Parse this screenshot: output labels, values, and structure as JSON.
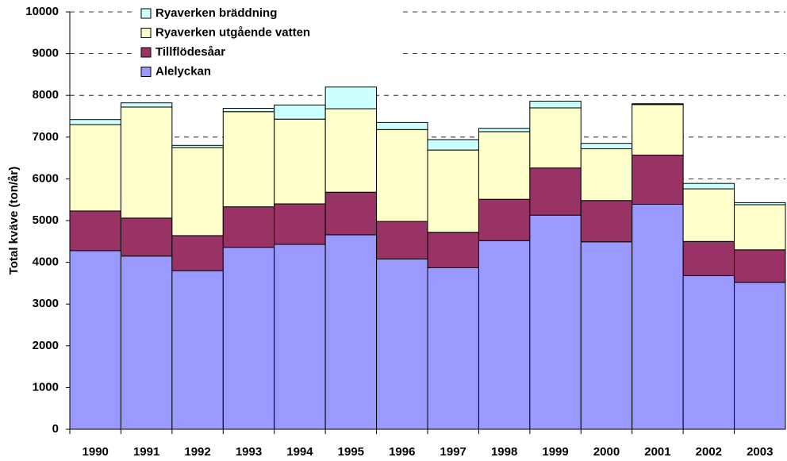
{
  "chart_data": {
    "type": "stacked_bar",
    "y_label": "Total kväve (ton/år)",
    "categories": [
      "1990",
      "1991",
      "1992",
      "1993",
      "1994",
      "1995",
      "1996",
      "1997",
      "1998",
      "1999",
      "2000",
      "2001",
      "2002",
      "2003"
    ],
    "series": [
      {
        "name": "Alelyckan",
        "color": "#9999ff",
        "values": [
          4280,
          4150,
          3800,
          4360,
          4430,
          4660,
          4080,
          3870,
          4520,
          5130,
          4490,
          5390,
          3680,
          3520
        ]
      },
      {
        "name": "Tillflödesåar",
        "color": "#993366",
        "values": [
          950,
          910,
          840,
          970,
          970,
          1020,
          900,
          850,
          990,
          1130,
          990,
          1180,
          820,
          780
        ]
      },
      {
        "name": "Ryaverken utgående vatten",
        "color": "#ffffcc",
        "values": [
          2070,
          2660,
          2110,
          2280,
          2030,
          2000,
          2200,
          1970,
          1620,
          1440,
          1240,
          1210,
          1260,
          1080
        ]
      },
      {
        "name": "Ryaverken bräddning",
        "color": "#ccffff",
        "values": [
          120,
          100,
          50,
          80,
          340,
          520,
          170,
          250,
          80,
          160,
          130,
          20,
          130,
          50
        ]
      }
    ],
    "ylim": [
      0,
      10000
    ],
    "yticks": [
      0,
      1000,
      2000,
      3000,
      4000,
      5000,
      6000,
      7000,
      8000,
      9000,
      10000
    ],
    "grid": true,
    "legend": "top-left"
  }
}
